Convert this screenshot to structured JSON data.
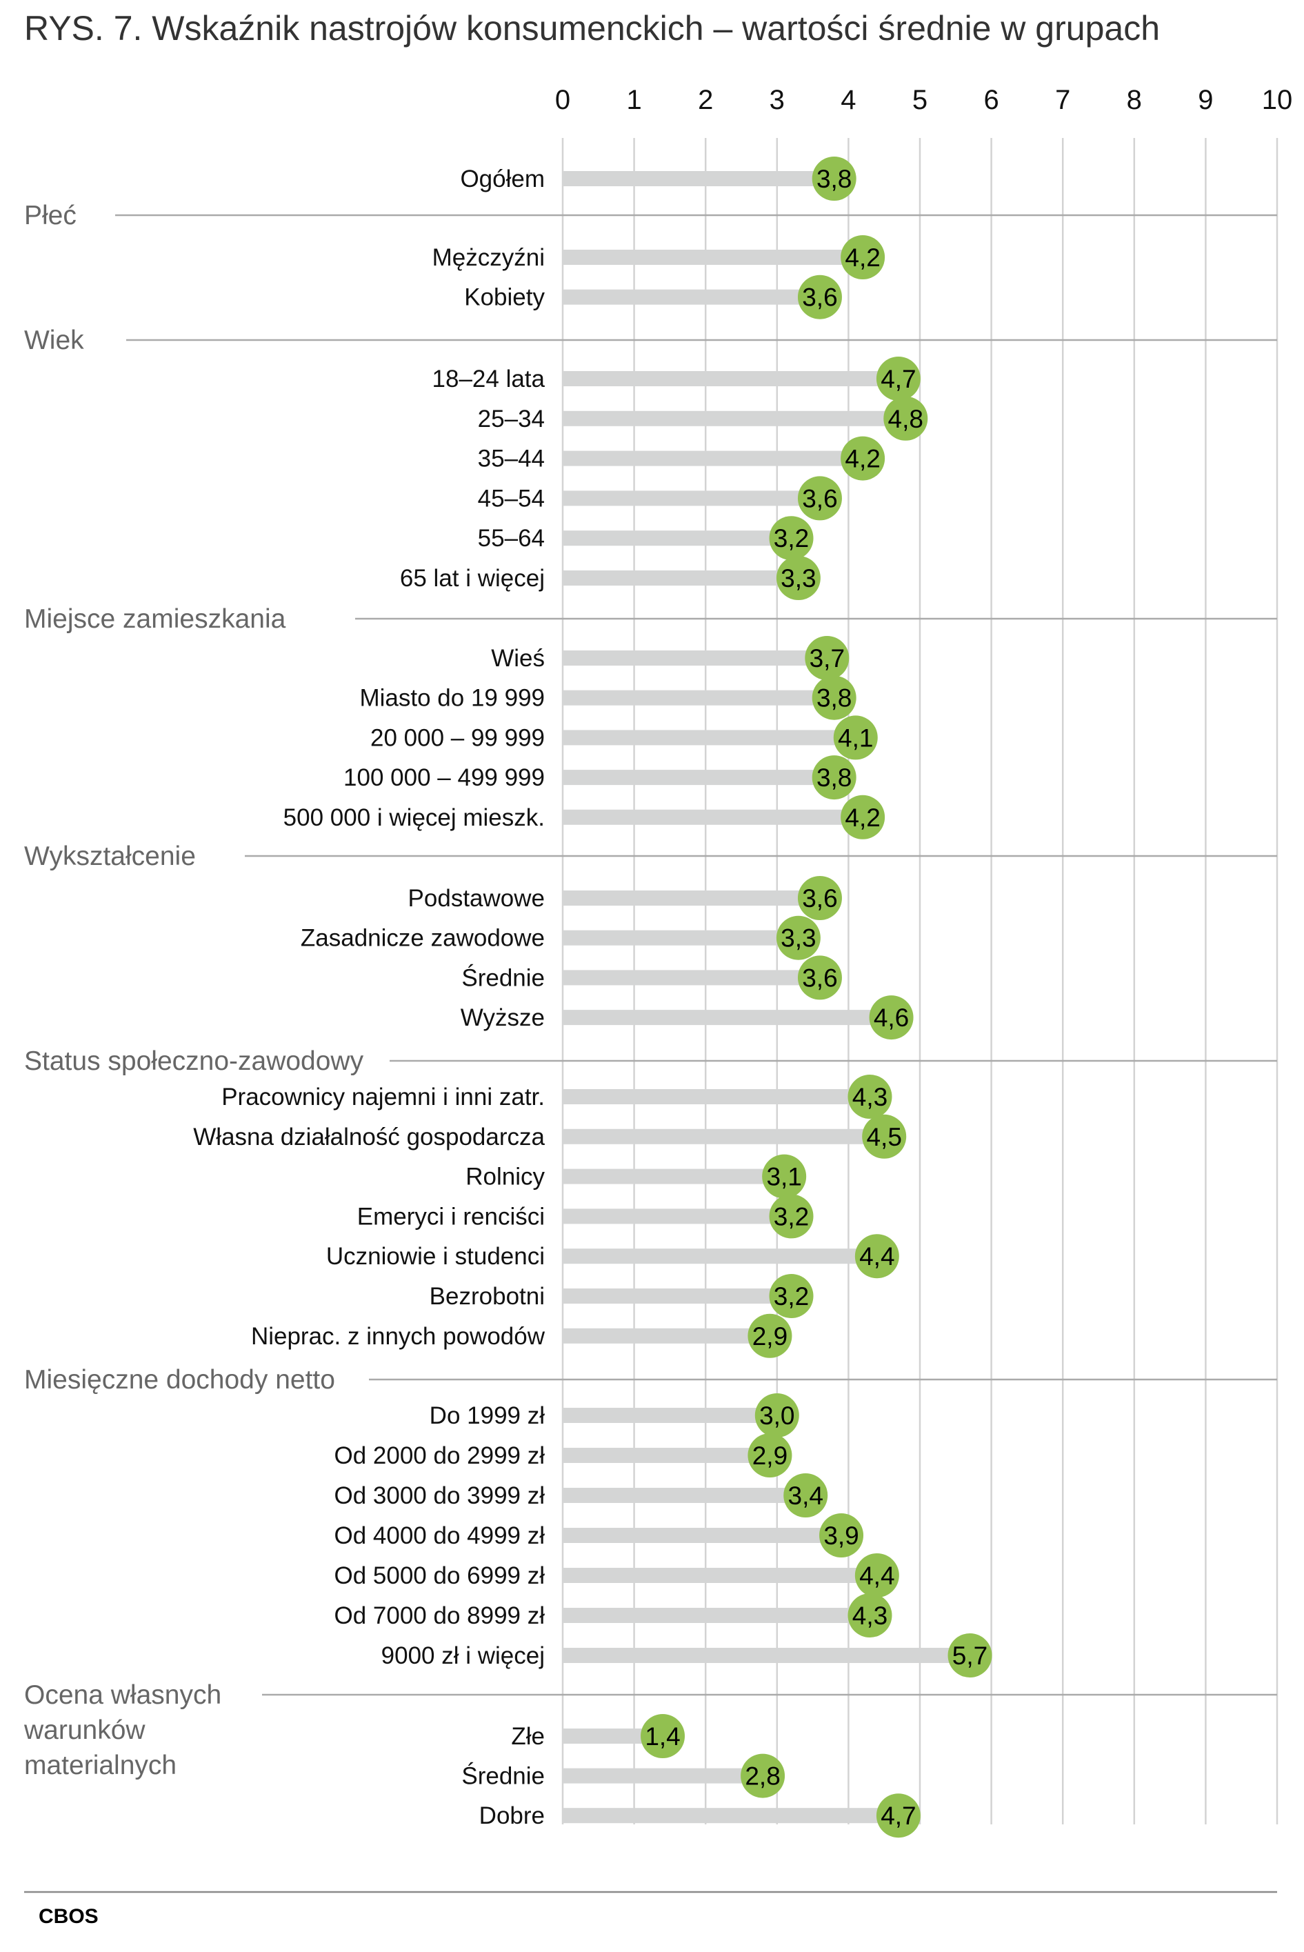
{
  "chart_data": {
    "type": "bar",
    "title": "RYS. 7. Wskaźnik nastrojów konsumenckich – wartości średnie w grupach",
    "xlabel": "",
    "ylabel": "",
    "xlim": [
      0,
      10
    ],
    "x_ticks": [
      "0",
      "1",
      "2",
      "3",
      "4",
      "5",
      "6",
      "7",
      "8",
      "9",
      "10"
    ],
    "grid": true,
    "orientation": "horizontal",
    "value_format": "decimal comma",
    "colors": {
      "marker": "#92c050",
      "bar": "#d4d5d5",
      "grid": "#d3d3d3",
      "separator": "#aaaaaa",
      "group_label": "#666666"
    },
    "groups": [
      {
        "name": "",
        "rows": [
          {
            "label": "Ogółem",
            "value": 3.8,
            "value_label": "3,8"
          }
        ]
      },
      {
        "name": "Płeć",
        "rows": [
          {
            "label": "Mężczyźni",
            "value": 4.2,
            "value_label": "4,2"
          },
          {
            "label": "Kobiety",
            "value": 3.6,
            "value_label": "3,6"
          }
        ]
      },
      {
        "name": "Wiek",
        "rows": [
          {
            "label": "18–24 lata",
            "value": 4.7,
            "value_label": "4,7"
          },
          {
            "label": "25–34",
            "value": 4.8,
            "value_label": "4,8"
          },
          {
            "label": "35–44",
            "value": 4.2,
            "value_label": "4,2"
          },
          {
            "label": "45–54",
            "value": 3.6,
            "value_label": "3,6"
          },
          {
            "label": "55–64",
            "value": 3.2,
            "value_label": "3,2"
          },
          {
            "label": "65 lat i więcej",
            "value": 3.3,
            "value_label": "3,3"
          }
        ]
      },
      {
        "name": "Miejsce zamieszkania",
        "rows": [
          {
            "label": "Wieś",
            "value": 3.7,
            "value_label": "3,7"
          },
          {
            "label": "Miasto do 19 999",
            "value": 3.8,
            "value_label": "3,8"
          },
          {
            "label": "20 000 – 99 999",
            "value": 4.1,
            "value_label": "4,1"
          },
          {
            "label": "100 000 – 499 999",
            "value": 3.8,
            "value_label": "3,8"
          },
          {
            "label": "500 000 i więcej mieszk.",
            "value": 4.2,
            "value_label": "4,2"
          }
        ]
      },
      {
        "name": "Wykształcenie",
        "rows": [
          {
            "label": "Podstawowe",
            "value": 3.6,
            "value_label": "3,6"
          },
          {
            "label": "Zasadnicze zawodowe",
            "value": 3.3,
            "value_label": "3,3"
          },
          {
            "label": "Średnie",
            "value": 3.6,
            "value_label": "3,6"
          },
          {
            "label": "Wyższe",
            "value": 4.6,
            "value_label": "4,6"
          }
        ]
      },
      {
        "name": "Status społeczno-zawodowy",
        "rows": [
          {
            "label": "Pracownicy najemni i inni zatr.",
            "value": 4.3,
            "value_label": "4,3"
          },
          {
            "label": "Własna działalność gospodarcza",
            "value": 4.5,
            "value_label": "4,5"
          },
          {
            "label": "Rolnicy",
            "value": 3.1,
            "value_label": "3,1"
          },
          {
            "label": "Emeryci i renciści",
            "value": 3.2,
            "value_label": "3,2"
          },
          {
            "label": "Uczniowie i studenci",
            "value": 4.4,
            "value_label": "4,4"
          },
          {
            "label": "Bezrobotni",
            "value": 3.2,
            "value_label": "3,2"
          },
          {
            "label": "Nieprac. z innych powodów",
            "value": 2.9,
            "value_label": "2,9"
          }
        ]
      },
      {
        "name": "Miesięczne dochody netto",
        "rows": [
          {
            "label": "Do 1999 zł",
            "value": 3.0,
            "value_label": "3,0"
          },
          {
            "label": "Od 2000 do 2999 zł",
            "value": 2.9,
            "value_label": "2,9"
          },
          {
            "label": "Od 3000 do 3999 zł",
            "value": 3.4,
            "value_label": "3,4"
          },
          {
            "label": "Od 4000 do 4999 zł",
            "value": 3.9,
            "value_label": "3,9"
          },
          {
            "label": "Od 5000 do 6999 zł",
            "value": 4.4,
            "value_label": "4,4"
          },
          {
            "label": "Od 7000 do 8999 zł",
            "value": 4.3,
            "value_label": "4,3"
          },
          {
            "label": "9000 zł i więcej",
            "value": 5.7,
            "value_label": "5,7"
          }
        ]
      },
      {
        "name": "Ocena własnych warunków materialnych",
        "name_lines": [
          "Ocena własnych",
          "warunków",
          "materialnych"
        ],
        "rows": [
          {
            "label": "Złe",
            "value": 1.4,
            "value_label": "1,4"
          },
          {
            "label": "Średnie",
            "value": 2.8,
            "value_label": "2,8"
          },
          {
            "label": "Dobre",
            "value": 4.7,
            "value_label": "4,7"
          }
        ]
      }
    ]
  },
  "footer": {
    "source": "CBOS"
  }
}
